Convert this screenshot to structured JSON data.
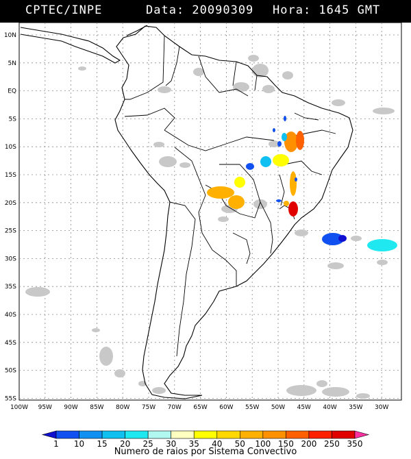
{
  "header": {
    "agency": "CPTEC/INPE",
    "date_label": "Data: 20090309",
    "time_label": "Hora: 1645 GMT"
  },
  "map": {
    "lat_labels": [
      "10N",
      "5N",
      "EQ",
      "5S",
      "10S",
      "15S",
      "20S",
      "25S",
      "30S",
      "35S",
      "40S",
      "45S",
      "50S",
      "55S"
    ],
    "lon_labels": [
      "100W",
      "95W",
      "90W",
      "85W",
      "80W",
      "75W",
      "70W",
      "65W",
      "60W",
      "55W",
      "50W",
      "45W",
      "40W",
      "35W",
      "30W"
    ],
    "colors": {
      "land_outline": "#000000",
      "grid": "#888888",
      "cloud": "#c8c8c8"
    }
  },
  "legend": {
    "title": "Numero de raios por Sistema Convectivo",
    "values": [
      "1",
      "10",
      "15",
      "20",
      "25",
      "30",
      "35",
      "40",
      "50",
      "100",
      "150",
      "200",
      "250",
      "350"
    ],
    "colors": [
      "#1010d0",
      "#1050f0",
      "#1090f0",
      "#10c0f0",
      "#20e8f0",
      "#b0f8f0",
      "#ffffc0",
      "#ffff00",
      "#ffd800",
      "#ffb000",
      "#ff9000",
      "#ff6000",
      "#ff2000",
      "#e00000",
      "#ff30a0"
    ]
  }
}
